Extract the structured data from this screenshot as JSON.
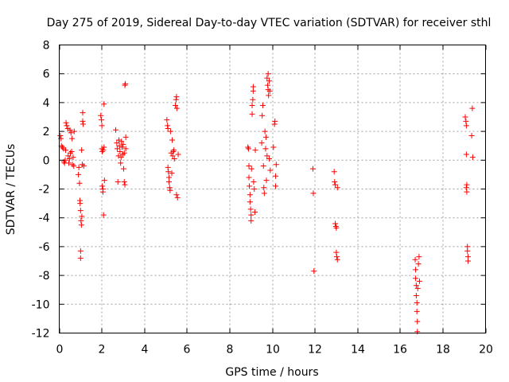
{
  "chart_data": {
    "type": "scatter",
    "title": "Day 275 of 2019, Sidereal Day-to-day VTEC variation (SDTVAR) for receiver sthl",
    "xlabel": "GPS time / hours",
    "ylabel": "SDTVAR / TECUs",
    "xlim": [
      0,
      20
    ],
    "ylim": [
      -12,
      8
    ],
    "xticks": [
      0,
      2,
      4,
      6,
      8,
      10,
      12,
      14,
      16,
      18,
      20
    ],
    "yticks": [
      -12,
      -10,
      -8,
      -6,
      -4,
      -2,
      0,
      2,
      4,
      6,
      8
    ],
    "grid": true,
    "marker": "+",
    "series": [
      {
        "name": "SDTVAR",
        "color": "#ff0000",
        "points": [
          [
            0.05,
            1.7
          ],
          [
            0.08,
            1.5
          ],
          [
            0.1,
            1.0
          ],
          [
            0.15,
            0.9
          ],
          [
            0.2,
            0.8
          ],
          [
            0.22,
            -0.1
          ],
          [
            0.25,
            -0.2
          ],
          [
            0.28,
            0.0
          ],
          [
            0.3,
            0.7
          ],
          [
            0.32,
            2.6
          ],
          [
            0.35,
            2.4
          ],
          [
            0.4,
            2.2
          ],
          [
            0.42,
            0.3
          ],
          [
            0.45,
            -0.2
          ],
          [
            0.48,
            0.1
          ],
          [
            0.5,
            2.1
          ],
          [
            0.52,
            0.5
          ],
          [
            0.55,
            1.9
          ],
          [
            0.58,
            0.6
          ],
          [
            0.6,
            1.5
          ],
          [
            0.62,
            -0.3
          ],
          [
            0.65,
            0.2
          ],
          [
            0.68,
            -0.4
          ],
          [
            0.7,
            2.0
          ],
          [
            0.9,
            -1.0
          ],
          [
            0.92,
            -0.5
          ],
          [
            0.95,
            -1.6
          ],
          [
            0.97,
            -2.8
          ],
          [
            0.98,
            -3.0
          ],
          [
            1.0,
            -3.5
          ],
          [
            1.0,
            -6.3
          ],
          [
            1.0,
            -6.8
          ],
          [
            1.02,
            -4.2
          ],
          [
            1.04,
            -4.5
          ],
          [
            1.05,
            0.7
          ],
          [
            1.06,
            -3.9
          ],
          [
            1.08,
            -0.3
          ],
          [
            1.1,
            2.7
          ],
          [
            1.1,
            3.3
          ],
          [
            1.12,
            2.5
          ],
          [
            1.15,
            -0.4
          ],
          [
            1.95,
            3.1
          ],
          [
            1.98,
            2.8
          ],
          [
            2.0,
            2.4
          ],
          [
            2.0,
            0.8
          ],
          [
            2.02,
            0.6
          ],
          [
            2.02,
            -1.8
          ],
          [
            2.05,
            -2.2
          ],
          [
            2.05,
            -2.0
          ],
          [
            2.06,
            0.7
          ],
          [
            2.08,
            -3.8
          ],
          [
            2.1,
            0.9
          ],
          [
            2.1,
            3.9
          ],
          [
            2.12,
            -1.4
          ],
          [
            2.65,
            2.1
          ],
          [
            2.7,
            1.2
          ],
          [
            2.72,
            0.8
          ],
          [
            2.75,
            -1.5
          ],
          [
            2.78,
            0.3
          ],
          [
            2.8,
            1.4
          ],
          [
            2.82,
            1.0
          ],
          [
            2.85,
            0.6
          ],
          [
            2.88,
            -0.2
          ],
          [
            2.9,
            0.2
          ],
          [
            2.92,
            1.3
          ],
          [
            2.95,
            0.9
          ],
          [
            2.98,
            0.4
          ],
          [
            3.0,
            1.1
          ],
          [
            3.02,
            -0.6
          ],
          [
            3.05,
            0.5
          ],
          [
            3.05,
            -1.5
          ],
          [
            3.08,
            -1.7
          ],
          [
            3.08,
            5.2
          ],
          [
            3.1,
            5.3
          ],
          [
            3.12,
            0.8
          ],
          [
            3.12,
            1.6
          ],
          [
            5.05,
            2.8
          ],
          [
            5.08,
            2.4
          ],
          [
            5.1,
            2.2
          ],
          [
            5.1,
            -0.5
          ],
          [
            5.12,
            -0.8
          ],
          [
            5.15,
            -1.2
          ],
          [
            5.15,
            -1.5
          ],
          [
            5.18,
            -1.9
          ],
          [
            5.2,
            -2.1
          ],
          [
            5.22,
            2.0
          ],
          [
            5.25,
            0.5
          ],
          [
            5.28,
            -0.9
          ],
          [
            5.3,
            1.4
          ],
          [
            5.32,
            0.3
          ],
          [
            5.35,
            0.6
          ],
          [
            5.38,
            0.7
          ],
          [
            5.4,
            0.1
          ],
          [
            5.45,
            3.8
          ],
          [
            5.48,
            4.2
          ],
          [
            5.5,
            4.4
          ],
          [
            5.5,
            -2.4
          ],
          [
            5.52,
            3.6
          ],
          [
            5.55,
            -2.6
          ],
          [
            5.58,
            0.4
          ],
          [
            8.85,
            0.9
          ],
          [
            8.88,
            0.8
          ],
          [
            8.9,
            -0.4
          ],
          [
            8.9,
            -1.2
          ],
          [
            8.92,
            -1.8
          ],
          [
            8.95,
            -2.4
          ],
          [
            8.95,
            -2.9
          ],
          [
            8.98,
            -3.4
          ],
          [
            9.0,
            -3.8
          ],
          [
            9.0,
            -4.2
          ],
          [
            9.02,
            -0.6
          ],
          [
            9.05,
            3.2
          ],
          [
            9.05,
            3.8
          ],
          [
            9.08,
            4.2
          ],
          [
            9.1,
            4.8
          ],
          [
            9.1,
            5.1
          ],
          [
            9.12,
            -1.5
          ],
          [
            9.15,
            -2.0
          ],
          [
            9.18,
            -3.6
          ],
          [
            9.2,
            0.7
          ],
          [
            9.5,
            1.2
          ],
          [
            9.52,
            3.1
          ],
          [
            9.55,
            3.8
          ],
          [
            9.58,
            -0.4
          ],
          [
            9.6,
            -1.9
          ],
          [
            9.62,
            -2.3
          ],
          [
            9.65,
            2.0
          ],
          [
            9.68,
            0.8
          ],
          [
            9.7,
            1.6
          ],
          [
            9.72,
            -1.4
          ],
          [
            9.75,
            0.3
          ],
          [
            9.75,
            5.7
          ],
          [
            9.78,
            5.2
          ],
          [
            9.8,
            4.9
          ],
          [
            9.8,
            6.0
          ],
          [
            9.82,
            4.5
          ],
          [
            9.85,
            0.1
          ],
          [
            9.85,
            5.5
          ],
          [
            9.88,
            4.8
          ],
          [
            9.9,
            -0.7
          ],
          [
            10.05,
            0.9
          ],
          [
            10.1,
            2.5
          ],
          [
            10.12,
            2.7
          ],
          [
            10.15,
            -1.1
          ],
          [
            10.15,
            -1.8
          ],
          [
            10.18,
            -0.3
          ],
          [
            11.9,
            -0.6
          ],
          [
            11.92,
            -2.3
          ],
          [
            11.95,
            -7.7
          ],
          [
            12.9,
            -0.8
          ],
          [
            12.92,
            -1.5
          ],
          [
            12.95,
            -1.7
          ],
          [
            12.95,
            -4.4
          ],
          [
            12.98,
            -4.6
          ],
          [
            13.0,
            -4.7
          ],
          [
            13.0,
            -6.4
          ],
          [
            13.02,
            -6.7
          ],
          [
            13.05,
            -6.9
          ],
          [
            13.05,
            -1.9
          ],
          [
            16.7,
            -6.9
          ],
          [
            16.72,
            -7.6
          ],
          [
            16.72,
            -8.2
          ],
          [
            16.75,
            -8.7
          ],
          [
            16.75,
            -9.4
          ],
          [
            16.78,
            -9.9
          ],
          [
            16.78,
            -10.5
          ],
          [
            16.8,
            -11.2
          ],
          [
            16.8,
            -11.9
          ],
          [
            16.82,
            -8.9
          ],
          [
            16.85,
            -7.2
          ],
          [
            16.88,
            -6.7
          ],
          [
            16.9,
            -8.4
          ],
          [
            19.05,
            3.0
          ],
          [
            19.08,
            2.7
          ],
          [
            19.1,
            2.4
          ],
          [
            19.1,
            -1.9
          ],
          [
            19.12,
            -1.7
          ],
          [
            19.12,
            -2.2
          ],
          [
            19.15,
            -6.0
          ],
          [
            19.15,
            -6.3
          ],
          [
            19.18,
            -6.7
          ],
          [
            19.18,
            -7.0
          ],
          [
            19.1,
            0.4
          ],
          [
            19.35,
            1.7
          ],
          [
            19.38,
            3.6
          ],
          [
            19.4,
            0.2
          ]
        ]
      }
    ]
  }
}
